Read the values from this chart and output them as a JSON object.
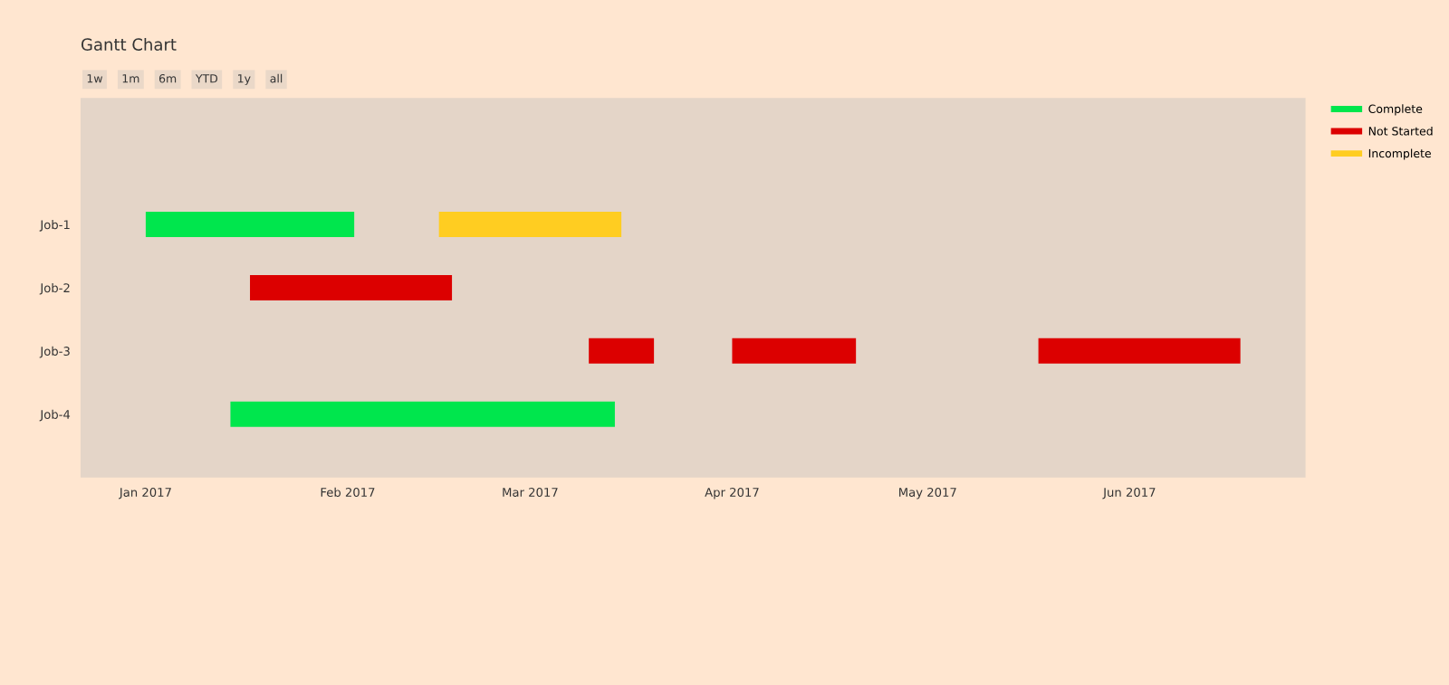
{
  "chart_data": {
    "type": "bar",
    "orientation": "horizontal",
    "title": "Gantt Chart",
    "annotations": [
      "1w",
      "1m",
      "6m",
      "YTD",
      "1y",
      "all"
    ],
    "categories": [
      "Job-1",
      "Job-2",
      "Job-3",
      "Job-4"
    ],
    "series": [
      {
        "name": "Complete",
        "color": "#00e64d",
        "base": [
          17167,
          null,
          null,
          17180
        ],
        "values": [
          32,
          null,
          null,
          59
        ]
      },
      {
        "name": "Not Started",
        "color": "#dc0000",
        "base": [
          null,
          17183,
          17235,
          null
        ],
        "values": [
          null,
          31,
          10,
          null
        ]
      },
      {
        "name": "Incomplete",
        "color": "#ffcd21",
        "base": [
          17212,
          null,
          null,
          null
        ],
        "values": [
          28,
          null,
          null,
          null
        ]
      },
      {
        "color": "#dc0000",
        "base": [
          null,
          null,
          17257,
          null
        ],
        "values": [
          null,
          null,
          19,
          null
        ]
      },
      {
        "color": "#dc0000",
        "base": [
          null,
          null,
          17304,
          null
        ],
        "values": [
          null,
          null,
          31,
          null
        ]
      }
    ],
    "xlim": [
      "2016-12-22",
      "2017-06-28"
    ],
    "xticks": [
      {
        "value": "2017-01-01",
        "label": "Jan 2017"
      },
      {
        "value": "2017-02-01",
        "label": "Feb 2017"
      },
      {
        "value": "2017-03-01",
        "label": "Mar 2017"
      },
      {
        "value": "2017-04-01",
        "label": "Apr 2017"
      },
      {
        "value": "2017-05-01",
        "label": "May 2017"
      },
      {
        "value": "2017-06-01",
        "label": "Jun 2017"
      }
    ],
    "grid": false,
    "legend": "top right"
  }
}
